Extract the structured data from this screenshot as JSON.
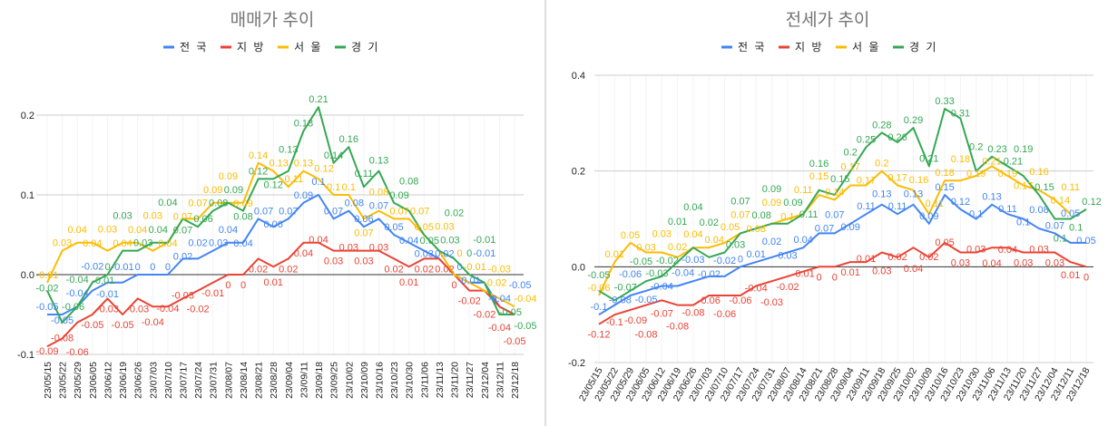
{
  "colors": {
    "전국": "#4285f4",
    "지방": "#ea4335",
    "서울": "#fbbc04",
    "경기": "#34a853"
  },
  "chart_data": [
    {
      "type": "line",
      "title": "매매가 추이",
      "legend_position": "top",
      "grid": true,
      "ylim": [
        -0.1,
        0.2
      ],
      "yticks": [
        "-0.1",
        "0.0",
        "0.1",
        "0.2"
      ],
      "ytick_values": [
        -0.1,
        0,
        0.1,
        0.2
      ],
      "categories": [
        "23/05/15",
        "23/05/22",
        "23/05/29",
        "23/06/05",
        "23/06/12",
        "23/06/19",
        "23/06/26",
        "23/07/03",
        "23/07/10",
        "23/07/17",
        "23/07/24",
        "23/07/31",
        "23/08/07",
        "23/08/14",
        "23/08/21",
        "23/08/28",
        "23/09/04",
        "23/09/11",
        "23/09/18",
        "23/09/25",
        "23/10/02",
        "23/10/09",
        "23/10/16",
        "23/10/23",
        "23/10/30",
        "23/11/06",
        "23/11/13",
        "23/11/20",
        "23/11/27",
        "23/12/04",
        "23/12/11",
        "23/12/18"
      ],
      "series": [
        {
          "name": "전 국",
          "key": "전국",
          "values": [
            -0.05,
            -0.05,
            -0.04,
            -0.02,
            -0.01,
            -0.01,
            0,
            0,
            0,
            0.02,
            0.02,
            0.03,
            0.04,
            0.04,
            0.07,
            0.06,
            0.07,
            0.09,
            0.1,
            0.07,
            0.08,
            0.06,
            0.07,
            0.05,
            0.04,
            0.03,
            0.02,
            0,
            -0.01,
            -0.01,
            -0.04,
            -0.05
          ]
        },
        {
          "name": "지 방",
          "key": "지방",
          "values": [
            -0.09,
            -0.08,
            -0.06,
            -0.05,
            -0.03,
            -0.05,
            -0.03,
            -0.04,
            -0.04,
            -0.03,
            -0.02,
            -0.01,
            0,
            0,
            0.02,
            0.01,
            0.02,
            0.04,
            0.04,
            0.03,
            0.03,
            0.03,
            0.03,
            0.02,
            0.01,
            0.02,
            0.02,
            0,
            -0.02,
            -0.02,
            -0.04,
            -0.05
          ]
        },
        {
          "name": "서 울",
          "key": "서울",
          "values": [
            -0.01,
            0.03,
            0.04,
            0.04,
            0.03,
            0.04,
            0.04,
            0.03,
            0.04,
            0.07,
            0.07,
            0.09,
            0.09,
            0.09,
            0.14,
            0.13,
            0.11,
            0.13,
            0.12,
            0.1,
            0.1,
            0.07,
            0.08,
            0.07,
            0.07,
            0.05,
            0.03,
            0,
            -0.01,
            -0.02,
            -0.03,
            -0.04
          ]
        },
        {
          "name": "경 기",
          "key": "경기",
          "values": [
            -0.02,
            -0.06,
            -0.04,
            -0.01,
            0,
            0.03,
            0.03,
            0.04,
            0.04,
            0.07,
            0.06,
            0.08,
            0.09,
            0.08,
            0.12,
            0.12,
            0.13,
            0.18,
            0.21,
            0.14,
            0.16,
            0.11,
            0.13,
            0.09,
            0.08,
            0.05,
            0.03,
            0.02,
            0,
            -0.01,
            -0.05,
            -0.05
          ]
        }
      ]
    },
    {
      "type": "line",
      "title": "전세가 추이",
      "legend_position": "top",
      "grid": true,
      "ylim": [
        -0.2,
        0.4
      ],
      "yticks": [
        "-0.2",
        "0.0",
        "0.2",
        "0.4"
      ],
      "ytick_values": [
        -0.2,
        0,
        0.2,
        0.4
      ],
      "categories": [
        "23/05/15",
        "23/05/22",
        "23/05/29",
        "23/06/05",
        "23/06/12",
        "23/06/19",
        "23/06/26",
        "23/07/03",
        "23/07/10",
        "23/07/17",
        "23/07/24",
        "23/07/31",
        "23/08/07",
        "23/08/14",
        "23/08/21",
        "23/08/28",
        "23/09/04",
        "23/09/11",
        "23/09/18",
        "23/09/25",
        "23/10/02",
        "23/10/09",
        "23/10/16",
        "23/10/23",
        "23/10/30",
        "23/11/06",
        "23/11/13",
        "23/11/20",
        "23/11/27",
        "23/12/04",
        "23/12/11",
        "23/12/18"
      ],
      "series": [
        {
          "name": "전 국",
          "key": "전국",
          "values": [
            -0.1,
            -0.08,
            -0.06,
            -0.05,
            -0.04,
            -0.04,
            -0.03,
            -0.02,
            -0.02,
            0,
            0.01,
            0.02,
            0.03,
            0.04,
            0.07,
            0.07,
            0.09,
            0.11,
            0.13,
            0.11,
            0.13,
            0.09,
            0.15,
            0.12,
            0.1,
            0.13,
            0.11,
            0.1,
            0.08,
            0.07,
            0.05,
            0.05
          ]
        },
        {
          "name": "지 방",
          "key": "지방",
          "values": [
            -0.12,
            -0.1,
            -0.09,
            -0.08,
            -0.07,
            -0.08,
            -0.08,
            -0.06,
            -0.06,
            -0.06,
            -0.04,
            -0.03,
            -0.02,
            -0.01,
            0,
            0,
            0.01,
            0.01,
            0.03,
            0.02,
            0.04,
            0.02,
            0.05,
            0.03,
            0.03,
            0.04,
            0.04,
            0.03,
            0.03,
            0.03,
            0.01,
            0
          ]
        },
        {
          "name": "서 울",
          "key": "서울",
          "values": [
            -0.06,
            0.01,
            0.05,
            0.03,
            0.03,
            0.02,
            0.04,
            0.04,
            0.05,
            0.07,
            0.08,
            0.09,
            0.1,
            0.11,
            0.15,
            0.14,
            0.17,
            0.17,
            0.2,
            0.17,
            0.16,
            0.11,
            0.18,
            0.18,
            0.19,
            0.21,
            0.19,
            0.17,
            0.16,
            0.14,
            0.11,
            null
          ]
        },
        {
          "name": "경 기",
          "key": "경기",
          "values": [
            -0.05,
            -0.07,
            -0.05,
            -0.03,
            -0.02,
            0.01,
            0.04,
            0.02,
            0.03,
            0.07,
            0.08,
            0.09,
            0.09,
            0.11,
            0.16,
            0.15,
            0.2,
            0.25,
            0.28,
            0.26,
            0.29,
            0.21,
            0.33,
            0.31,
            0.2,
            0.23,
            0.21,
            0.19,
            0.15,
            0.1,
            0.1,
            0.12
          ]
        }
      ]
    }
  ]
}
